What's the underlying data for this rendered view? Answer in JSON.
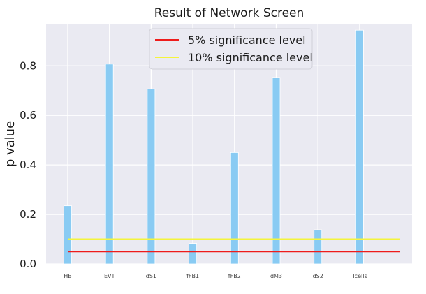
{
  "chart_data": {
    "type": "bar",
    "title": "Result of Network Screen",
    "xlabel": "",
    "ylabel": "p value",
    "categories": [
      "HB",
      "EVT",
      "dS1",
      "fFB1",
      "fFB2",
      "dM3",
      "dS2",
      "Tcells"
    ],
    "values": [
      0.235,
      0.807,
      0.707,
      0.083,
      0.45,
      0.753,
      0.138,
      0.944
    ],
    "bar_color": "#89CBF3",
    "ylim": [
      0,
      0.97
    ],
    "yticks": [
      0.0,
      0.2,
      0.4,
      0.6,
      0.8
    ],
    "ytick_labels": [
      "0.0",
      "0.2",
      "0.4",
      "0.6",
      "0.8"
    ],
    "grid": true,
    "background": "#EAEAF2",
    "reference_lines": [
      {
        "label": "5% significance level",
        "y": 0.05,
        "color": "#EE1C1C"
      },
      {
        "label": "10% significance level",
        "y": 0.1,
        "color": "#F4F43C"
      }
    ],
    "legend": {
      "placement": "top-center",
      "entries": [
        "5% significance level",
        "10% significance level"
      ]
    }
  }
}
